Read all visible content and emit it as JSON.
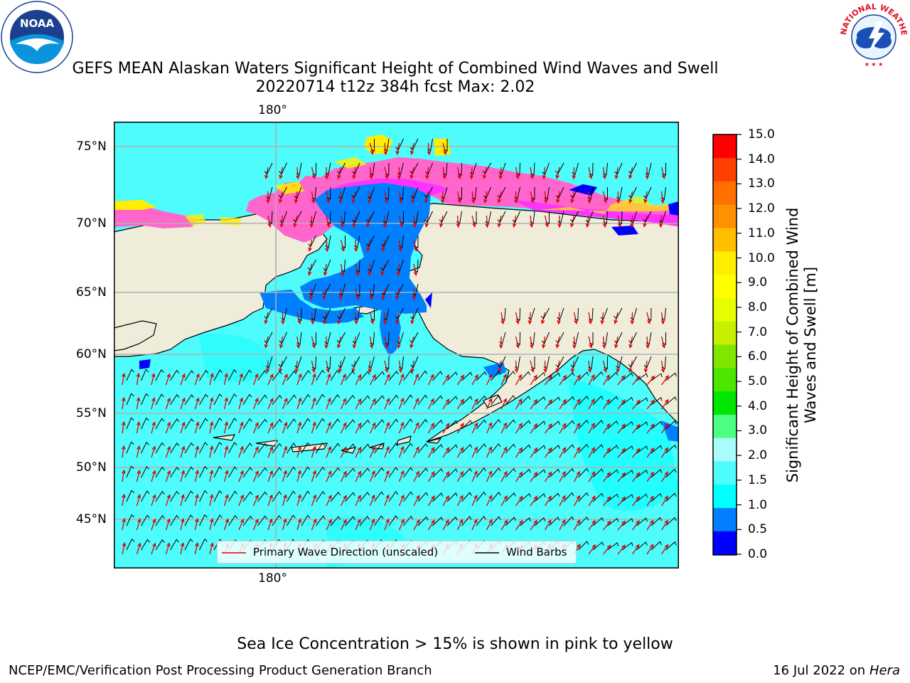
{
  "title": {
    "line1": "GEFS MEAN Alaskan Waters Significant Height of Combined Wind Waves and Swell",
    "line2": "20220714 t12z 384h fcst   Max: 2.02"
  },
  "map": {
    "lon_label": "180°",
    "lat_labels": [
      "75°N",
      "70°N",
      "65°N",
      "60°N",
      "55°N",
      "50°N",
      "45°N"
    ],
    "colors": {
      "land": "#efedda",
      "open_water": "#4dfcfb",
      "open_water_light": "#00ffff",
      "shallow_water": "#0080ff",
      "low_water": "#0000ff",
      "ice_pink": "#ff66cc",
      "ice_magenta": "#ff33ff",
      "ice_yellow": "#ffee00",
      "wave_arrow": "#e00000",
      "wind_barb": "#000000",
      "grid": "#b0b0b0"
    }
  },
  "legend": {
    "wave_label": "Primary Wave Direction (unscaled)",
    "barb_label": "Wind Barbs"
  },
  "colorbar": {
    "label": "Significant Height of Combined Wind Waves and Swell [m]",
    "ticks": [
      "15.0",
      "14.0",
      "13.0",
      "12.0",
      "11.0",
      "10.0",
      "9.0",
      "8.0",
      "7.0",
      "6.0",
      "5.0",
      "4.0",
      "3.0",
      "2.0",
      "1.5",
      "1.0",
      "0.5",
      "0.0"
    ],
    "colors": [
      "#0000ff",
      "#0080ff",
      "#00ffff",
      "#4dfcfb",
      "#a8fcfb",
      "#4cff80",
      "#00e600",
      "#4ce600",
      "#7fe600",
      "#c6f000",
      "#e6ff00",
      "#ffff00",
      "#ffee00",
      "#ffbf00",
      "#ff9000",
      "#ff7000",
      "#ff4000",
      "#ff0000"
    ]
  },
  "logos": {
    "noaa_text": "NOAA",
    "nws_text": "NATIONAL WEATHER SERVICE"
  },
  "footer": {
    "ice_note": "Sea Ice Concentration > 15% is shown in pink to yellow",
    "branch": "NCEP/EMC/Verification Post Processing Product Generation Branch",
    "date": "16 Jul 2022 on",
    "machine": "Hera"
  }
}
